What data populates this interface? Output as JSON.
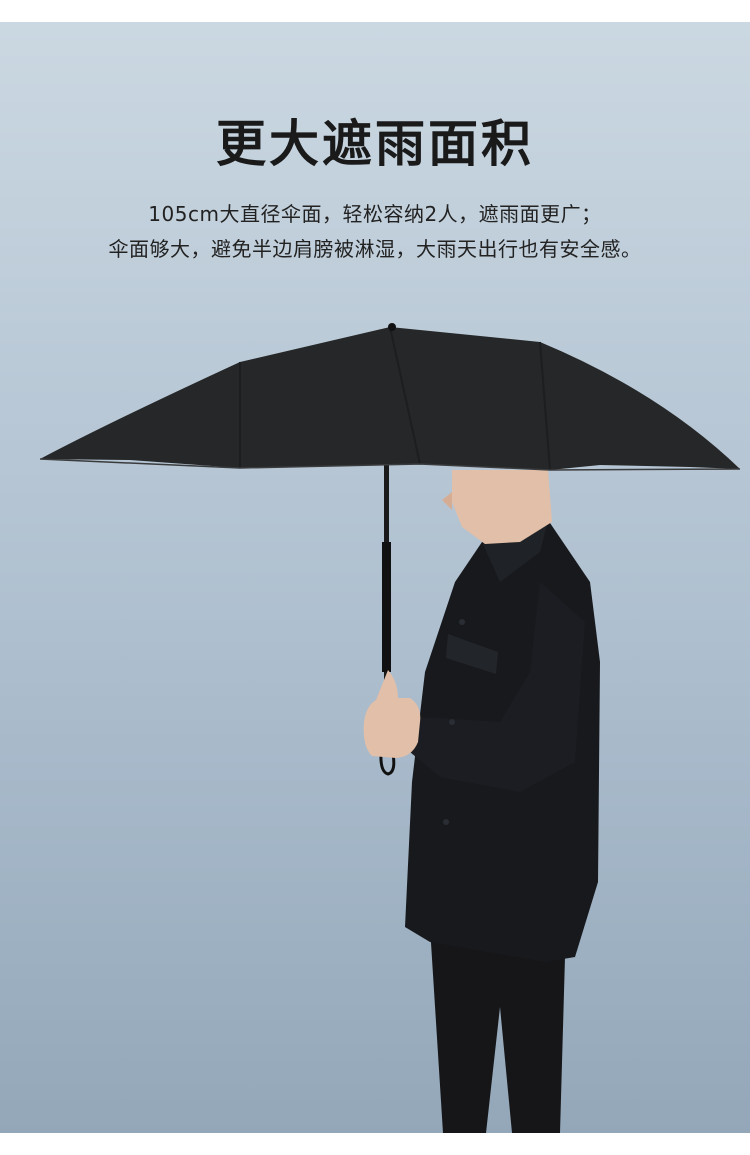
{
  "headline": "更大遮雨面积",
  "description": {
    "line1": "105cm大直径伞面，轻松容纳2人，遮雨面更广；",
    "line2": "伞面够大，避免半边肩膀被淋湿，大雨天出行也有安全感。"
  },
  "colors": {
    "background": "#aebfcf",
    "umbrella": "#262728",
    "clothing": "#17191d",
    "skin": "#e2bfa8"
  }
}
